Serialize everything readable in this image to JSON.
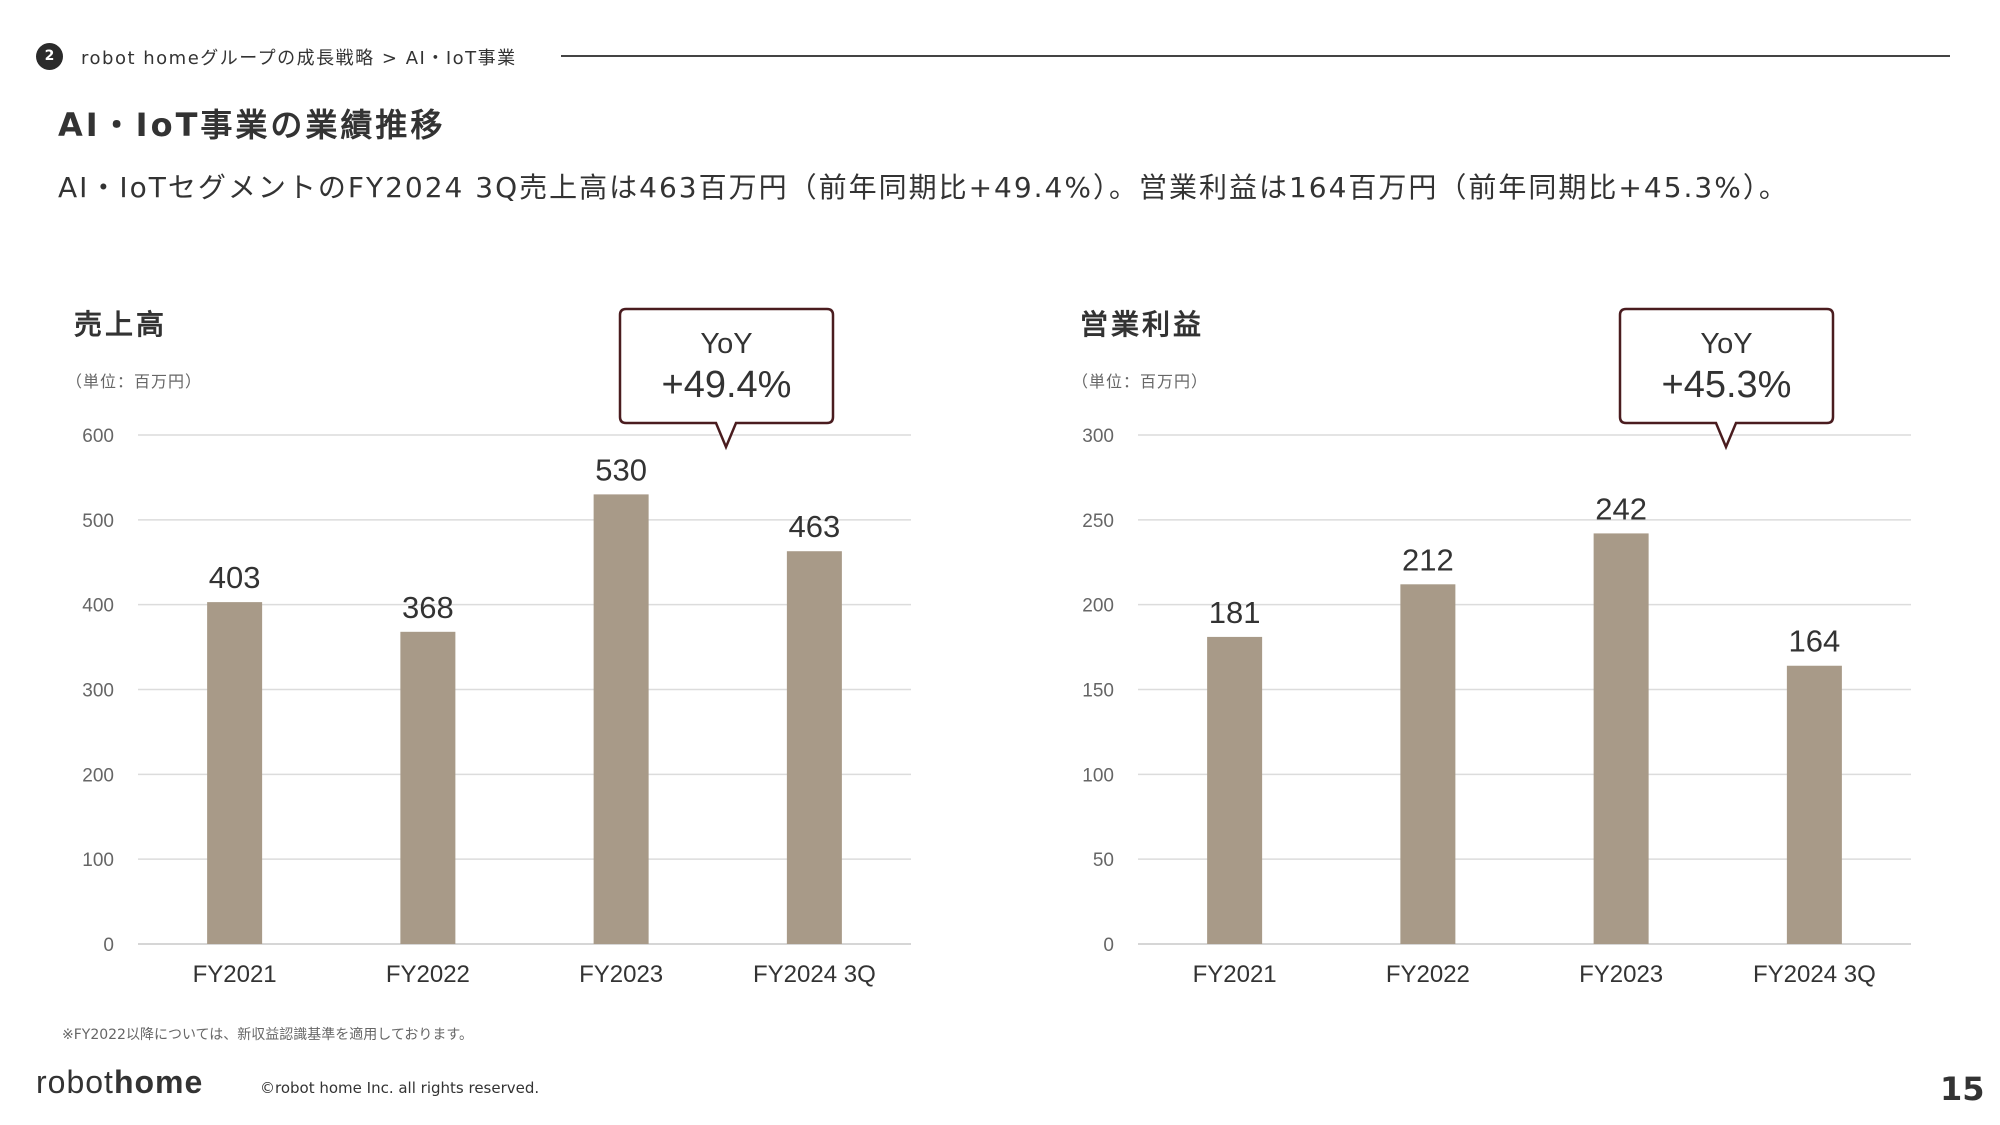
{
  "header": {
    "section_number": "2",
    "breadcrumb": "robot homeグループの成長戦略 > AI・IoT事業",
    "title": "AI・IoT事業の業績推移",
    "subtitle": "AI・IoTセグメントのFY2024 3Q売上高は463百万円（前年同期比+49.4%）。営業利益は164百万円（前年同期比+45.3%）。"
  },
  "chart_data": [
    {
      "type": "bar",
      "title": "売上高",
      "unit": "（単位：百万円）",
      "categories": [
        "FY2021",
        "FY2022",
        "FY2023",
        "FY2024 3Q"
      ],
      "values": [
        403,
        368,
        530,
        463
      ],
      "value_labels": [
        "403",
        "368",
        "530",
        "463"
      ],
      "ylim": [
        0,
        600
      ],
      "yticks": [
        0,
        100,
        200,
        300,
        400,
        500,
        600
      ],
      "ytick_labels": [
        "0",
        "100",
        "200",
        "300",
        "400",
        "500",
        "600"
      ],
      "grid": true,
      "bar_color": "#a89a88",
      "annotation": {
        "line1": "YoY",
        "line2": "+49.4%",
        "border_color": "#4a1c1f"
      }
    },
    {
      "type": "bar",
      "title": "営業利益",
      "unit": "（単位：百万円）",
      "categories": [
        "FY2021",
        "FY2022",
        "FY2023",
        "FY2024 3Q"
      ],
      "values": [
        181,
        212,
        242,
        164
      ],
      "value_labels": [
        "181",
        "212",
        "242",
        "164"
      ],
      "ylim": [
        0,
        300
      ],
      "yticks": [
        0,
        50,
        100,
        150,
        200,
        250,
        300
      ],
      "ytick_labels": [
        "0",
        "50",
        "100",
        "150",
        "200",
        "250",
        "300"
      ],
      "grid": true,
      "bar_color": "#a89a88",
      "annotation": {
        "line1": "YoY",
        "line2": "+45.3%",
        "border_color": "#4a1c1f"
      }
    }
  ],
  "footer": {
    "footnote": "※FY2022以降については、新収益認識基準を適用しております。",
    "logo_light": "robot",
    "logo_bold": "home",
    "copyright": "©robot home Inc. all rights reserved.",
    "page_number": "15"
  }
}
